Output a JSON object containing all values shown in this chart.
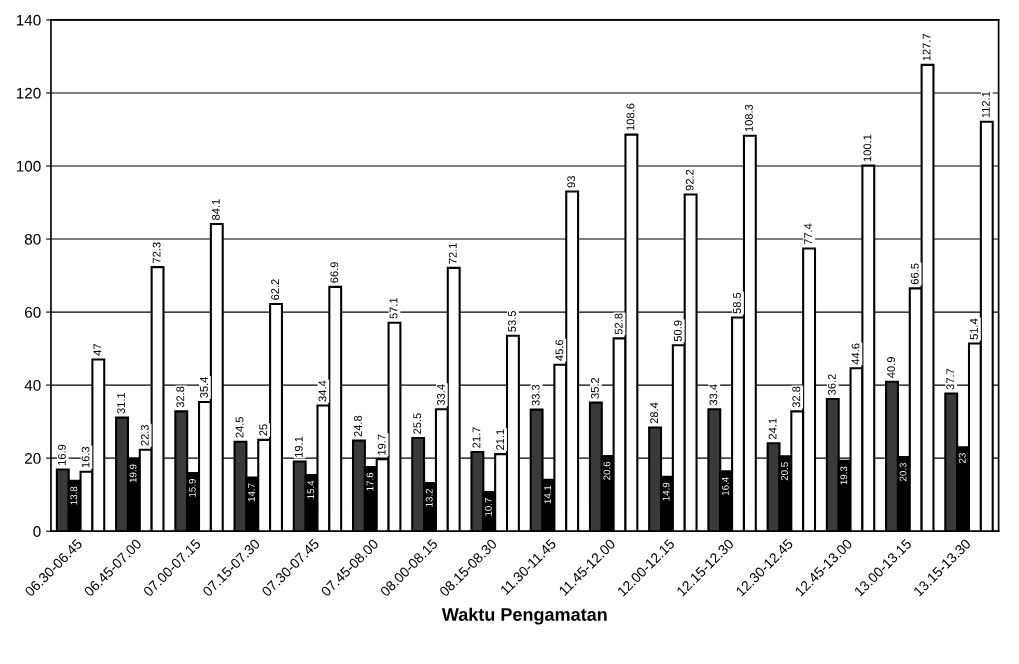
{
  "chart_data": {
    "type": "bar",
    "xlabel": "Waktu Pengamatan",
    "categories": [
      "06.30-06.45",
      "06.45-07.00",
      "07.00-07.15",
      "07.15-07.30",
      "07.30-07.45",
      "07.45-08.00",
      "08.00-08.15",
      "08.15-08.30",
      "11.30-11.45",
      "11.45-12.00",
      "12.00-12.15",
      "12.15-12.30",
      "12.30-12.45",
      "12.45-13.00",
      "13.00-13.15",
      "13.15-13.30"
    ],
    "series": [
      {
        "color": "#3a3a3a",
        "values": [
          16.9,
          31.1,
          32.8,
          24.5,
          19.1,
          24.8,
          25.5,
          21.7,
          33.3,
          35.2,
          28.4,
          33.4,
          24.1,
          36.2,
          40.9,
          37.7
        ]
      },
      {
        "color": "#000000",
        "values": [
          13.8,
          19.9,
          15.9,
          14.7,
          15.4,
          17.6,
          13.2,
          10.7,
          14.1,
          20.6,
          14.9,
          16.4,
          20.5,
          19.3,
          20.3,
          23
        ]
      },
      {
        "color": "#ffffff",
        "values": [
          16.3,
          22.3,
          35.4,
          25,
          34.4,
          19.7,
          33.4,
          21.1,
          45.6,
          52.8,
          50.9,
          58.5,
          32.8,
          44.6,
          66.5,
          51.4
        ]
      },
      {
        "color": "#ffffff",
        "values": [
          47,
          72.3,
          84.1,
          62.2,
          66.9,
          57.1,
          72.1,
          53.5,
          93,
          108.6,
          92.2,
          108.3,
          77.4,
          100.1,
          127.7,
          112.1
        ]
      }
    ],
    "ylim": [
      0,
      140
    ],
    "yticks": [
      0,
      20,
      40,
      60,
      80,
      100,
      120,
      140
    ],
    "grid": "y",
    "data_labels": true
  }
}
